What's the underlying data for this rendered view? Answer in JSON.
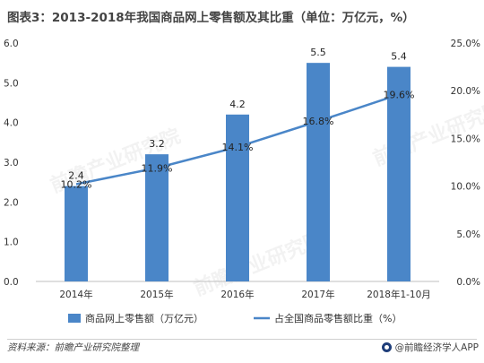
{
  "title": "图表3：2013-2018年我国商品网上零售额及其比重（单位：万亿元，%）",
  "source": "资料来源：前瞻产业研究院整理",
  "brand": "@前瞻经济学人APP",
  "watermark": "前瞻产业研究院",
  "chart_data": {
    "type": "bar+line",
    "categories": [
      "2014年",
      "2015年",
      "2016年",
      "2017年",
      "2018年1-10月"
    ],
    "series": [
      {
        "name": "商品网上零售额（万亿元）",
        "type": "bar",
        "axis": "left",
        "color": "#4a86c8",
        "values": [
          2.4,
          3.2,
          4.2,
          5.5,
          5.4
        ],
        "labels": [
          "2.4",
          "3.2",
          "4.2",
          "5.5",
          "5.4"
        ]
      },
      {
        "name": "占全国商品零售额比重（%）",
        "type": "line",
        "axis": "right",
        "color": "#4a86c8",
        "values": [
          10.2,
          11.9,
          14.1,
          16.8,
          19.6
        ],
        "labels": [
          "10.2%",
          "11.9%",
          "14.1%",
          "16.8%",
          "19.6%"
        ]
      }
    ],
    "y_left": {
      "range": [
        0,
        6
      ],
      "ticks": [
        "0.0",
        "1.0",
        "2.0",
        "3.0",
        "4.0",
        "5.0",
        "6.0"
      ]
    },
    "y_right": {
      "range": [
        0,
        25
      ],
      "ticks": [
        "0.0%",
        "5.0%",
        "10.0%",
        "15.0%",
        "20.0%",
        "25.0%"
      ]
    },
    "grid": false,
    "legend_position": "bottom"
  }
}
